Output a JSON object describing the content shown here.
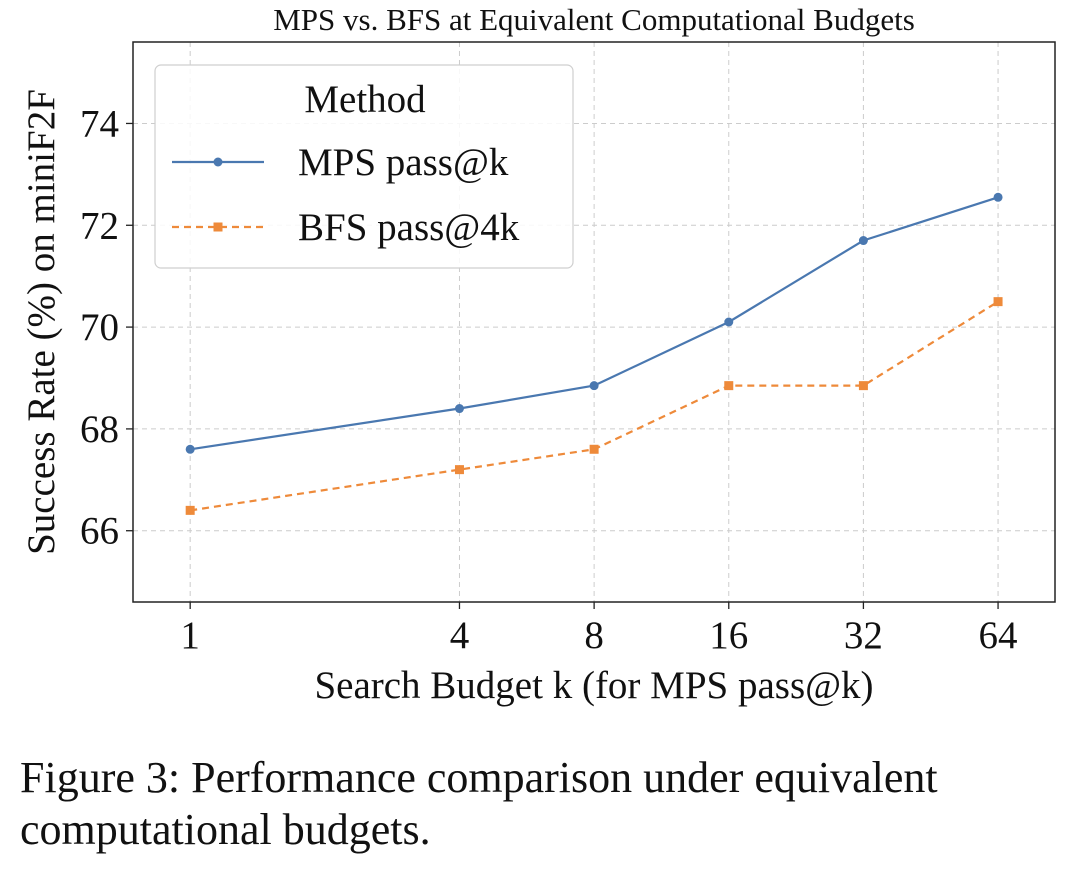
{
  "chart_data": {
    "type": "line",
    "title": "MPS vs. BFS at Equivalent Computational Budgets",
    "xlabel": "Search Budget k (for MPS pass@k)",
    "ylabel": "Success Rate (%) on miniF2F",
    "x_scale": "log2",
    "categories": [
      "1",
      "4",
      "8",
      "16",
      "32",
      "64"
    ],
    "x": [
      1,
      4,
      8,
      16,
      32,
      64
    ],
    "ylim": [
      64.6,
      75.6
    ],
    "yticks": [
      "66",
      "68",
      "70",
      "72",
      "74"
    ],
    "grid": true,
    "legend": {
      "title": "Method",
      "placement": "top-left"
    },
    "series": [
      {
        "name": "MPS pass@k",
        "values": [
          67.6,
          68.4,
          68.85,
          70.1,
          71.7,
          72.55
        ],
        "color": "#4a78b0",
        "marker": "circle",
        "line_style": "solid"
      },
      {
        "name": "BFS pass@4k",
        "values": [
          66.4,
          67.2,
          67.6,
          68.85,
          68.85,
          70.5
        ],
        "color": "#ee8a3a",
        "marker": "square",
        "line_style": "dashed"
      }
    ]
  },
  "caption": "Figure 3: Performance comparison under equivalent computational budgets."
}
